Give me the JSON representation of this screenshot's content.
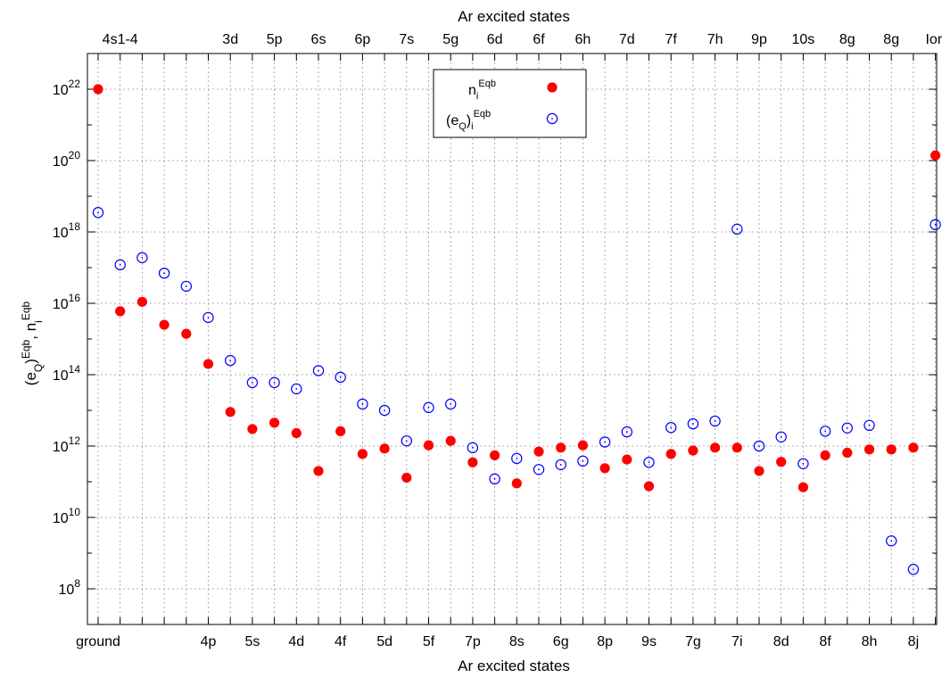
{
  "chart_data": {
    "type": "scatter",
    "title_top": "Ar excited states",
    "xlabel": "Ar excited states",
    "ylabel": "(e_Q)^Eqb, n_i^Eqb",
    "yscale": "log",
    "ylim": [
      10000000.0,
      1e+23
    ],
    "grid": true,
    "legend_position": "top-center",
    "bottom_tick_labels": [
      {
        "x": 1,
        "label": "ground"
      },
      {
        "x": 6,
        "label": "4p"
      },
      {
        "x": 8,
        "label": "5s"
      },
      {
        "x": 10,
        "label": "4d"
      },
      {
        "x": 12,
        "label": "4f"
      },
      {
        "x": 14,
        "label": "5d"
      },
      {
        "x": 16,
        "label": "5f"
      },
      {
        "x": 18,
        "label": "7p"
      },
      {
        "x": 20,
        "label": "8s"
      },
      {
        "x": 22,
        "label": "6g"
      },
      {
        "x": 24,
        "label": "8p"
      },
      {
        "x": 26,
        "label": "9s"
      },
      {
        "x": 28,
        "label": "7g"
      },
      {
        "x": 30,
        "label": "7i"
      },
      {
        "x": 32,
        "label": "8d"
      },
      {
        "x": 34,
        "label": "8f"
      },
      {
        "x": 36,
        "label": "8h"
      },
      {
        "x": 38,
        "label": "8j"
      }
    ],
    "top_tick_labels": [
      {
        "x": 2,
        "label": "4s1-4"
      },
      {
        "x": 7,
        "label": "3d"
      },
      {
        "x": 9,
        "label": "5p"
      },
      {
        "x": 11,
        "label": "6s"
      },
      {
        "x": 13,
        "label": "6p"
      },
      {
        "x": 15,
        "label": "7s"
      },
      {
        "x": 17,
        "label": "5g"
      },
      {
        "x": 19,
        "label": "6d"
      },
      {
        "x": 21,
        "label": "6f"
      },
      {
        "x": 23,
        "label": "6h"
      },
      {
        "x": 25,
        "label": "7d"
      },
      {
        "x": 27,
        "label": "7f"
      },
      {
        "x": 29,
        "label": "7h"
      },
      {
        "x": 31,
        "label": "9p"
      },
      {
        "x": 33,
        "label": "10s"
      },
      {
        "x": 35,
        "label": "8g"
      },
      {
        "x": 37,
        "label": "8g"
      },
      {
        "x": 39,
        "label": "Ion"
      }
    ],
    "y_ticks": [
      {
        "value": 100000000.0,
        "base": "10",
        "exp": "8"
      },
      {
        "value": 10000000000.0,
        "base": "10",
        "exp": "10"
      },
      {
        "value": 1000000000000.0,
        "base": "10",
        "exp": "12"
      },
      {
        "value": 100000000000000.0,
        "base": "10",
        "exp": "14"
      },
      {
        "value": 1e+16,
        "base": "10",
        "exp": "16"
      },
      {
        "value": 1e+18,
        "base": "10",
        "exp": "18"
      },
      {
        "value": 1e+20,
        "base": "10",
        "exp": "20"
      },
      {
        "value": 1e+22,
        "base": "10",
        "exp": "22"
      }
    ],
    "series": [
      {
        "name": "n_i^Eqb",
        "marker": "filled-circle",
        "color": "#ff0000",
        "points": [
          [
            1,
            1e+22
          ],
          [
            2,
            6000000000000000.0
          ],
          [
            3,
            1.1e+16
          ],
          [
            4,
            2500000000000000.0
          ],
          [
            5,
            1400000000000000.0
          ],
          [
            6,
            200000000000000.0
          ],
          [
            7,
            9000000000000.0
          ],
          [
            8,
            3000000000000.0
          ],
          [
            9,
            4500000000000.0
          ],
          [
            10,
            2300000000000.0
          ],
          [
            11,
            200000000000.0
          ],
          [
            12,
            2600000000000.0
          ],
          [
            13,
            600000000000.0
          ],
          [
            14,
            850000000000.0
          ],
          [
            15,
            130000000000.0
          ],
          [
            16,
            1050000000000.0
          ],
          [
            17,
            1400000000000.0
          ],
          [
            18,
            350000000000.0
          ],
          [
            19,
            550000000000.0
          ],
          [
            20,
            90000000000.0
          ],
          [
            21,
            700000000000.0
          ],
          [
            22,
            900000000000.0
          ],
          [
            23,
            1050000000000.0
          ],
          [
            24,
            240000000000.0
          ],
          [
            25,
            420000000000.0
          ],
          [
            26,
            75000000000.0
          ],
          [
            27,
            600000000000.0
          ],
          [
            28,
            750000000000.0
          ],
          [
            29,
            900000000000.0
          ],
          [
            30,
            900000000000.0
          ],
          [
            31,
            200000000000.0
          ],
          [
            32,
            360000000000.0
          ],
          [
            33,
            70000000000.0
          ],
          [
            34,
            550000000000.0
          ],
          [
            35,
            650000000000.0
          ],
          [
            36,
            800000000000.0
          ],
          [
            37,
            800000000000.0
          ],
          [
            38,
            900000000000.0
          ],
          [
            39,
            1.4e+20
          ]
        ]
      },
      {
        "name": "(e_Q)_i^Eqb",
        "marker": "open-circle",
        "color": "#0000ff",
        "points": [
          [
            1,
            3.5e+18
          ],
          [
            2,
            1.2e+17
          ],
          [
            3,
            1.9e+17
          ],
          [
            4,
            7e+16
          ],
          [
            5,
            3e+16
          ],
          [
            6,
            4000000000000000.0
          ],
          [
            7,
            250000000000000.0
          ],
          [
            8,
            60000000000000.0
          ],
          [
            9,
            60000000000000.0
          ],
          [
            10,
            40000000000000.0
          ],
          [
            11,
            130000000000000.0
          ],
          [
            12,
            85000000000000.0
          ],
          [
            13,
            15000000000000.0
          ],
          [
            14,
            10000000000000.0
          ],
          [
            15,
            1400000000000.0
          ],
          [
            16,
            12000000000000.0
          ],
          [
            17,
            15000000000000.0
          ],
          [
            18,
            900000000000.0
          ],
          [
            19,
            120000000000.0
          ],
          [
            20,
            450000000000.0
          ],
          [
            21,
            220000000000.0
          ],
          [
            22,
            300000000000.0
          ],
          [
            23,
            380000000000.0
          ],
          [
            24,
            1300000000000.0
          ],
          [
            25,
            2500000000000.0
          ],
          [
            26,
            350000000000.0
          ],
          [
            27,
            3300000000000.0
          ],
          [
            28,
            4200000000000.0
          ],
          [
            29,
            5000000000000.0
          ],
          [
            30,
            1.2e+18
          ],
          [
            31,
            1000000000000.0
          ],
          [
            32,
            1800000000000.0
          ],
          [
            33,
            320000000000.0
          ],
          [
            34,
            2600000000000.0
          ],
          [
            35,
            3200000000000.0
          ],
          [
            36,
            3800000000000.0
          ],
          [
            37,
            2200000000.0
          ],
          [
            38,
            350000000.0
          ],
          [
            39,
            1.6e+18
          ]
        ]
      }
    ]
  }
}
